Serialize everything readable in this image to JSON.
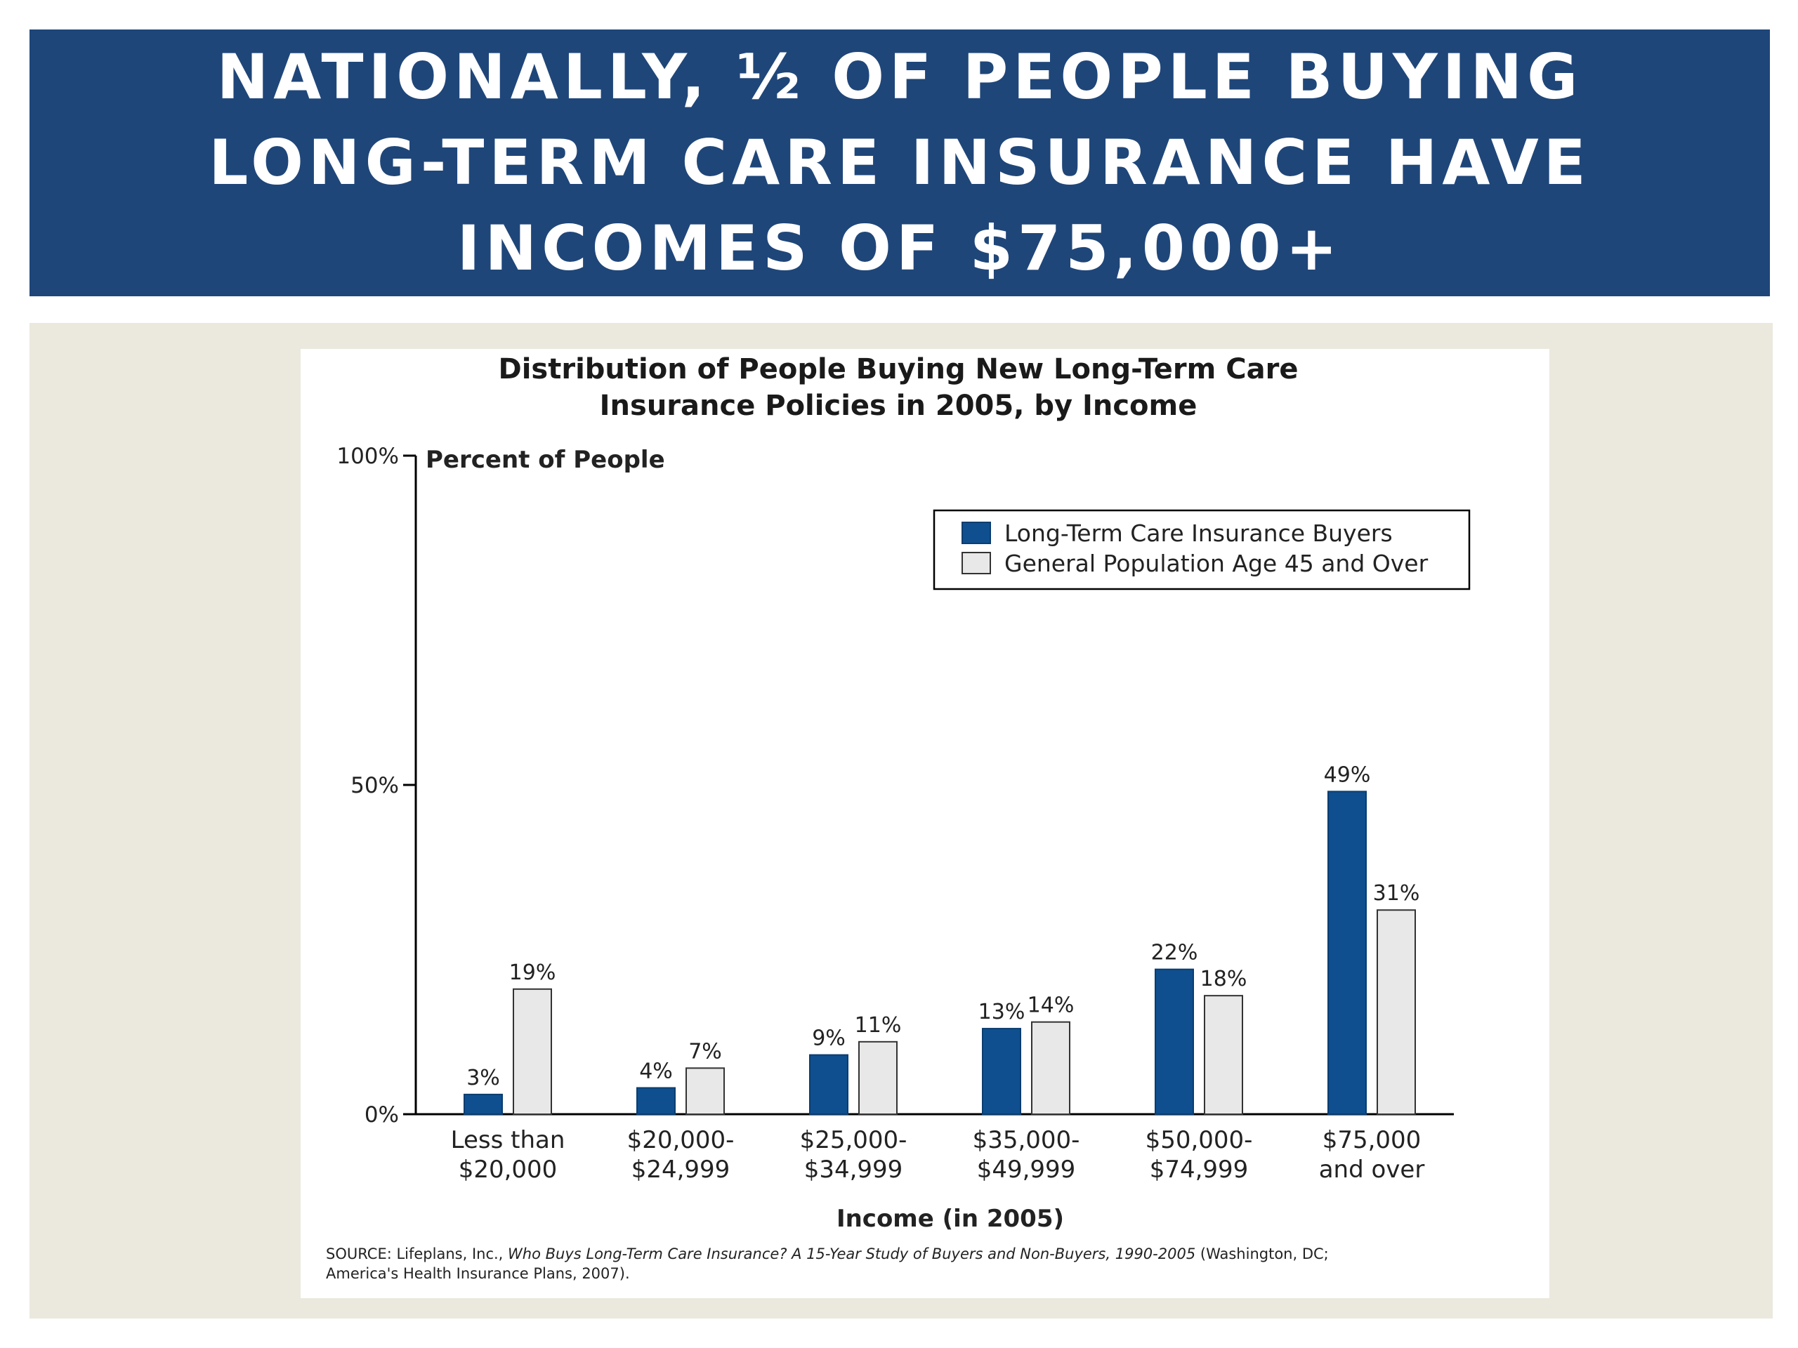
{
  "slide": {
    "title": "NATIONALLY, ½ OF PEOPLE BUYING LONG-TERM CARE INSURANCE HAVE INCOMES OF $75,000+"
  },
  "colors": {
    "banner": "#1f4679",
    "buyers": "#0f4f8f",
    "population": "#e8e8e8",
    "panel": "#ebe8de"
  },
  "chart_data": {
    "type": "bar",
    "title": [
      "Distribution of People Buying New Long-Term Care",
      "Insurance Policies in 2005, by Income"
    ],
    "ylabel": "Percent of People",
    "xlabel": "Income (in 2005)",
    "ylim": [
      0,
      100
    ],
    "yticks": [
      {
        "value": 100,
        "label": "100%"
      },
      {
        "value": 50,
        "label": "50%"
      },
      {
        "value": 0,
        "label": "0%"
      }
    ],
    "categories": [
      [
        "Less than",
        "$20,000"
      ],
      [
        "$20,000-",
        "$24,999"
      ],
      [
        "$25,000-",
        "$34,999"
      ],
      [
        "$35,000-",
        "$49,999"
      ],
      [
        "$50,000-",
        "$74,999"
      ],
      [
        "$75,000",
        "and over"
      ]
    ],
    "series": [
      {
        "name": "Long-Term Care Insurance Buyers",
        "values": [
          3,
          4,
          9,
          13,
          22,
          49
        ],
        "labels": [
          "3%",
          "4%",
          "9%",
          "13%",
          "22%",
          "49%"
        ]
      },
      {
        "name": "General Population Age 45 and Over",
        "values": [
          19,
          7,
          11,
          14,
          18,
          31
        ],
        "labels": [
          "19%",
          "7%",
          "11%",
          "14%",
          "18%",
          "31%"
        ]
      }
    ],
    "legend_position": "top-right",
    "grid": false
  },
  "source": {
    "prefix": "SOURCE: Lifeplans, Inc., ",
    "title": "Who Buys Long-Term Care Insurance? A 15-Year Study of Buyers and Non-Buyers, 1990-2005",
    "suffix": " (Washington, DC;",
    "line2": "America's Health Insurance Plans, 2007)."
  }
}
